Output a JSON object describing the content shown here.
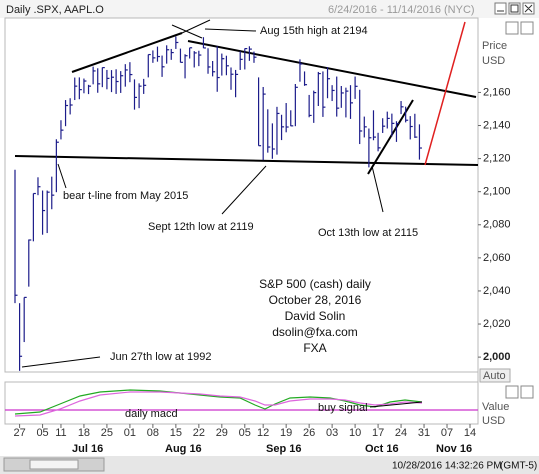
{
  "header": {
    "title": "Daily .SPX, AAPL.O",
    "range": "6/24/2016 - 11/14/2016 (NYC)"
  },
  "chart_data": {
    "type": "ohlc",
    "color": "#1c1c8a",
    "x": [
      "2016-06-24",
      "2016-06-27",
      "2016-06-28",
      "2016-06-29",
      "2016-06-30",
      "2016-07-01",
      "2016-07-05",
      "2016-07-06",
      "2016-07-07",
      "2016-07-08",
      "2016-07-11",
      "2016-07-12",
      "2016-07-13",
      "2016-07-14",
      "2016-07-15",
      "2016-07-18",
      "2016-07-19",
      "2016-07-20",
      "2016-07-21",
      "2016-07-22",
      "2016-07-25",
      "2016-07-26",
      "2016-07-27",
      "2016-07-28",
      "2016-07-29",
      "2016-08-01",
      "2016-08-02",
      "2016-08-03",
      "2016-08-04",
      "2016-08-05",
      "2016-08-08",
      "2016-08-09",
      "2016-08-10",
      "2016-08-11",
      "2016-08-12",
      "2016-08-15",
      "2016-08-16",
      "2016-08-17",
      "2016-08-18",
      "2016-08-19",
      "2016-08-22",
      "2016-08-23",
      "2016-08-24",
      "2016-08-25",
      "2016-08-26",
      "2016-08-29",
      "2016-08-30",
      "2016-08-31",
      "2016-09-01",
      "2016-09-02",
      "2016-09-06",
      "2016-09-07",
      "2016-09-08",
      "2016-09-09",
      "2016-09-12",
      "2016-09-13",
      "2016-09-14",
      "2016-09-15",
      "2016-09-16",
      "2016-09-19",
      "2016-09-20",
      "2016-09-21",
      "2016-09-22",
      "2016-09-23",
      "2016-09-26",
      "2016-09-27",
      "2016-09-28",
      "2016-09-29",
      "2016-09-30",
      "2016-10-03",
      "2016-10-04",
      "2016-10-05",
      "2016-10-06",
      "2016-10-07",
      "2016-10-10",
      "2016-10-11",
      "2016-10-12",
      "2016-10-13",
      "2016-10-14",
      "2016-10-17",
      "2016-10-18",
      "2016-10-19",
      "2016-10-20",
      "2016-10-21",
      "2016-10-24",
      "2016-10-25",
      "2016-10-26",
      "2016-10-27",
      "2016-10-28"
    ],
    "high": [
      2113.3,
      2032.6,
      2036.1,
      2071.1,
      2098.9,
      2108.7,
      2100.7,
      2100.7,
      2109.1,
      2131.7,
      2143.2,
      2155.4,
      2156.5,
      2169.0,
      2169.1,
      2168.4,
      2164.6,
      2175.6,
      2174.6,
      2175.1,
      2173.6,
      2173.5,
      2174.0,
      2172.9,
      2177.1,
      2178.3,
      2167.9,
      2165.5,
      2168.2,
      2182.9,
      2185.4,
      2187.7,
      2182.3,
      2188.5,
      2186.3,
      2193.8,
      2186.5,
      2183.1,
      2187.0,
      2185.0,
      2185.2,
      2193.4,
      2186.7,
      2179.0,
      2187.9,
      2183.5,
      2182.2,
      2175.1,
      2173.6,
      2184.9,
      2186.6,
      2187.9,
      2184.7,
      2169.1,
      2163.3,
      2149.8,
      2141.3,
      2151.3,
      2146.5,
      2153.6,
      2149.2,
      2165.1,
      2180.0,
      2172.7,
      2158.5,
      2161.1,
      2172.4,
      2172.7,
      2175.3,
      2164.4,
      2169.6,
      2163.9,
      2162.9,
      2164.4,
      2169.6,
      2161.6,
      2145.4,
      2138.2,
      2149.2,
      2135.6,
      2144.4,
      2148.4,
      2147.2,
      2142.6,
      2154.8,
      2151.4,
      2145.7,
      2147.1,
      2140.7
    ],
    "low": [
      2032.6,
      1991.7,
      2009.1,
      2042.6,
      2070.0,
      2097.9,
      2074.0,
      2075.0,
      2089.4,
      2099.7,
      2131.6,
      2139.6,
      2146.7,
      2155.4,
      2155.9,
      2159.5,
      2159.0,
      2164.9,
      2159.8,
      2163.2,
      2161.9,
      2160.2,
      2159.1,
      2159.7,
      2163.5,
      2166.2,
      2149.6,
      2150.5,
      2159.1,
      2169.1,
      2177.9,
      2178.6,
      2169.4,
      2177.4,
      2179.7,
      2186.3,
      2178.1,
      2168.5,
      2180.5,
      2175.1,
      2175.9,
      2186.8,
      2171.3,
      2169.7,
      2160.4,
      2170.2,
      2170.4,
      2161.6,
      2157.1,
      2173.6,
      2173.9,
      2179.1,
      2177.9,
      2127.8,
      2119.1,
      2123.6,
      2119.9,
      2122.4,
      2131.2,
      2135.9,
      2139.6,
      2139.6,
      2166.5,
      2164.0,
      2145.0,
      2141.6,
      2151.8,
      2145.2,
      2156.5,
      2154.8,
      2145.4,
      2150.7,
      2144.9,
      2144.0,
      2156.1,
      2128.8,
      2132.8,
      2114.7,
      2131.1,
      2124.4,
      2135.5,
      2138.2,
      2133.4,
      2130.1,
      2146.9,
      2141.9,
      2131.6,
      2132.5,
      2119.4
    ],
    "close": [
      2037.4,
      2000.5,
      2036.1,
      2070.8,
      2098.9,
      2103.0,
      2088.6,
      2099.7,
      2097.9,
      2129.9,
      2137.2,
      2152.1,
      2152.4,
      2163.8,
      2161.7,
      2166.9,
      2163.8,
      2173.0,
      2165.2,
      2175.0,
      2168.5,
      2169.2,
      2166.6,
      2170.1,
      2173.6,
      2170.8,
      2157.0,
      2163.8,
      2164.3,
      2182.9,
      2180.9,
      2181.7,
      2175.5,
      2185.8,
      2184.1,
      2190.2,
      2178.2,
      2182.2,
      2187.0,
      2183.9,
      2182.6,
      2186.9,
      2175.4,
      2172.5,
      2169.0,
      2180.4,
      2176.1,
      2171.0,
      2170.9,
      2180.0,
      2186.5,
      2186.2,
      2181.3,
      2127.8,
      2159.0,
      2127.0,
      2125.8,
      2147.3,
      2139.2,
      2139.1,
      2139.8,
      2163.1,
      2177.2,
      2164.7,
      2146.1,
      2159.9,
      2171.4,
      2151.1,
      2168.3,
      2161.2,
      2150.5,
      2159.7,
      2160.8,
      2153.7,
      2163.7,
      2136.7,
      2139.2,
      2132.6,
      2133.0,
      2126.5,
      2139.6,
      2144.3,
      2141.3,
      2141.2,
      2151.3,
      2143.2,
      2139.4,
      2133.0,
      2126.4
    ],
    "xlim": [
      "2016-06-24",
      "2016-11-14"
    ],
    "ylim": [
      1991,
      2205
    ],
    "yticks": [
      {
        "value": 2000,
        "label": "2,000"
      },
      {
        "value": 2020,
        "label": "2,020"
      },
      {
        "value": 2040,
        "label": "2,040"
      },
      {
        "value": 2060,
        "label": "2,060"
      },
      {
        "value": 2080,
        "label": "2,080"
      },
      {
        "value": 2100,
        "label": "2,100"
      },
      {
        "value": 2120,
        "label": "2,120"
      },
      {
        "value": 2140,
        "label": "2,140"
      },
      {
        "value": 2160,
        "label": "2,160"
      }
    ],
    "xticks": [
      {
        "value": "2016-06-27",
        "label": "27"
      },
      {
        "value": "2016-07-05",
        "label": "05"
      },
      {
        "value": "2016-07-11",
        "label": "11"
      },
      {
        "value": "2016-07-18",
        "label": "18"
      },
      {
        "value": "2016-07-25",
        "label": "25"
      },
      {
        "value": "2016-08-01",
        "label": "01"
      },
      {
        "value": "2016-08-08",
        "label": "08"
      },
      {
        "value": "2016-08-15",
        "label": "15"
      },
      {
        "value": "2016-08-22",
        "label": "22"
      },
      {
        "value": "2016-08-29",
        "label": "29"
      },
      {
        "value": "2016-09-05",
        "label": "05"
      },
      {
        "value": "2016-09-12",
        "label": "12"
      },
      {
        "value": "2016-09-19",
        "label": "19"
      },
      {
        "value": "2016-09-26",
        "label": "26"
      },
      {
        "value": "2016-10-03",
        "label": "03"
      },
      {
        "value": "2016-10-10",
        "label": "10"
      },
      {
        "value": "2016-10-17",
        "label": "17"
      },
      {
        "value": "2016-10-24",
        "label": "24"
      },
      {
        "value": "2016-10-31",
        "label": "31"
      },
      {
        "value": "2016-11-07",
        "label": "07"
      },
      {
        "value": "2016-11-14",
        "label": "14"
      }
    ],
    "month_labels": [
      "Jul 16",
      "Aug 16",
      "Sep 16",
      "Oct 16",
      "Nov 16"
    ],
    "y_axis_label": "Price",
    "y_axis_unit": "USD",
    "auto_button": "Auto",
    "annotations": [
      "Aug 15th high at 2194",
      "bear t-line from May 2015",
      "Sept 12th low at 2119",
      "Oct 13th low at 2115",
      "Jun 27th low at 1992"
    ],
    "note": [
      "S&P 500 (cash) daily",
      "October 28, 2016",
      "David Solin",
      "dsolin@fxa.com",
      "FXA"
    ],
    "macd_panel": {
      "axis_label": "Value",
      "axis_unit": "USD",
      "annotations": [
        "daily macd",
        "buy signal"
      ]
    }
  },
  "status_bar": {
    "timestamp": "10/28/2016 14:32:26 PM",
    "timezone": "(GMT-5)"
  }
}
